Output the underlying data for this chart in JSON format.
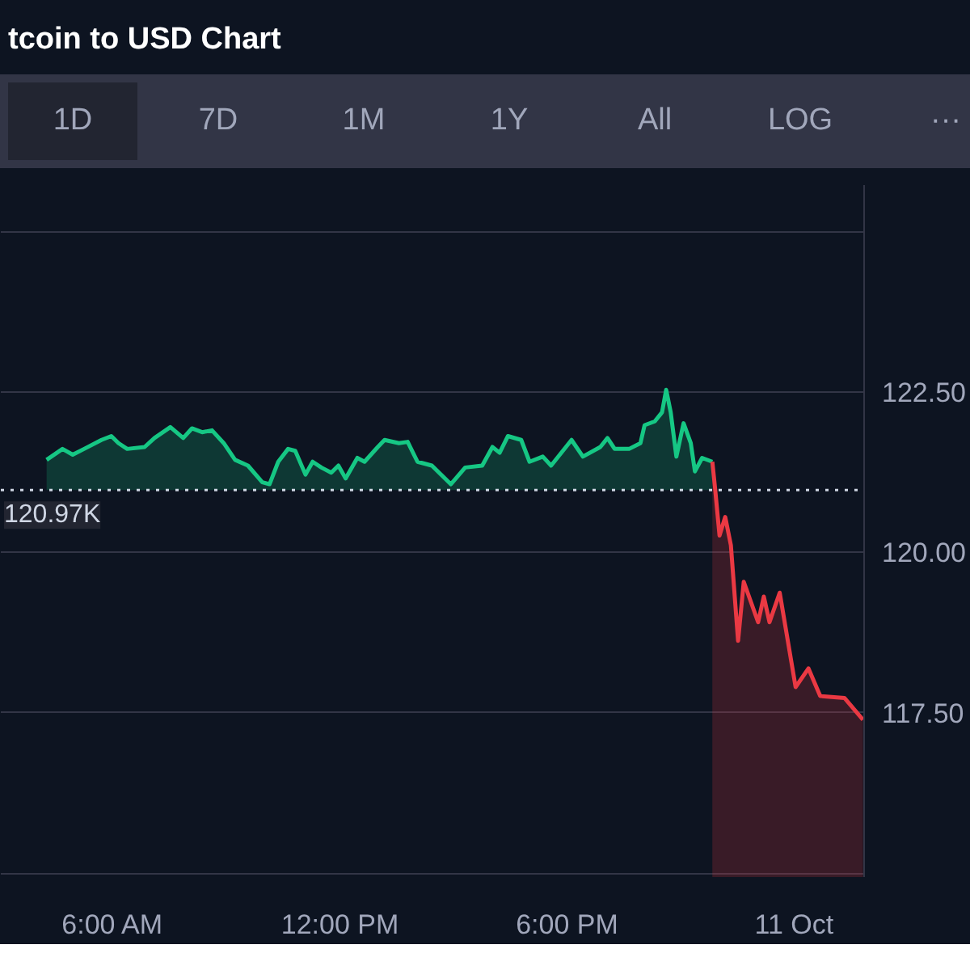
{
  "chart_data": {
    "type": "area",
    "title": "tcoin to USD Chart",
    "annotations": [
      "1D",
      "7D",
      "1M",
      "1Y",
      "All",
      "LOG",
      "···"
    ],
    "xlim": [
      3.04,
      25.85
    ],
    "ylim": [
      114.94,
      125.72
    ],
    "xticks": [
      {
        "value": 6,
        "label": "6:00 AM"
      },
      {
        "value": 12,
        "label": "12:00 PM"
      },
      {
        "value": 18,
        "label": "6:00 PM"
      },
      {
        "value": 24,
        "label": "11 Oct"
      }
    ],
    "yticks": [
      {
        "value": 115,
        "label": null
      },
      {
        "value": 117.5,
        "label": "117.50"
      },
      {
        "value": 120,
        "label": "120.00"
      },
      {
        "value": 122.5,
        "label": "122.50"
      },
      {
        "value": 125,
        "label": null
      }
    ],
    "grid": "y",
    "ref_lines": [
      {
        "axis": "y",
        "value": 120.97,
        "label": "120.97K",
        "color": "#cfd6e4",
        "line_style": "dotted"
      }
    ],
    "series": [
      {
        "color": "#16c784",
        "x": [
          4.25,
          4.67,
          4.94,
          5.24,
          5.7,
          5.96,
          6.15,
          6.38,
          6.84,
          7.1,
          7.52,
          7.86,
          8.09,
          8.36,
          8.62,
          8.93,
          9.23,
          9.57,
          9.95,
          10.14,
          10.37,
          10.63,
          10.82,
          11.09,
          11.28,
          11.51,
          11.77,
          11.96,
          12.15,
          12.46,
          12.65,
          13.0,
          13.18,
          13.56,
          13.79,
          14.05,
          14.43,
          14.93,
          15.31,
          15.76,
          16.03,
          16.22,
          16.44,
          16.79,
          17.01,
          17.36,
          17.58,
          18.12,
          18.42,
          18.88,
          19.07,
          19.26,
          19.64,
          19.94,
          20.05,
          20.32,
          20.51,
          20.62,
          20.74,
          20.89,
          21.08,
          21.27,
          21.38,
          21.57,
          21.84
        ],
        "values": [
          121.44,
          121.61,
          121.52,
          121.61,
          121.75,
          121.81,
          121.7,
          121.61,
          121.64,
          121.78,
          121.95,
          121.78,
          121.93,
          121.87,
          121.9,
          121.7,
          121.44,
          121.35,
          121.09,
          121.06,
          121.41,
          121.61,
          121.58,
          121.21,
          121.41,
          121.32,
          121.24,
          121.35,
          121.15,
          121.47,
          121.41,
          121.64,
          121.75,
          121.7,
          121.72,
          121.41,
          121.35,
          121.06,
          121.32,
          121.35,
          121.64,
          121.55,
          121.81,
          121.75,
          121.41,
          121.49,
          121.35,
          121.75,
          121.49,
          121.64,
          121.78,
          121.61,
          121.61,
          121.7,
          121.98,
          122.04,
          122.18,
          122.53,
          122.18,
          121.49,
          122.01,
          121.7,
          121.26,
          121.47,
          121.41
        ]
      },
      {
        "color": "#ea3943",
        "x": [
          21.84,
          21.91,
          22.03,
          22.18,
          22.33,
          22.52,
          22.67,
          23.05,
          23.2,
          23.35,
          23.62,
          24.04,
          24.38,
          24.69,
          25.33,
          25.82
        ],
        "values": [
          121.41,
          121.01,
          120.26,
          120.55,
          120.11,
          118.62,
          119.54,
          118.91,
          119.31,
          118.91,
          119.37,
          117.9,
          118.19,
          117.76,
          117.73,
          117.39
        ]
      }
    ]
  }
}
